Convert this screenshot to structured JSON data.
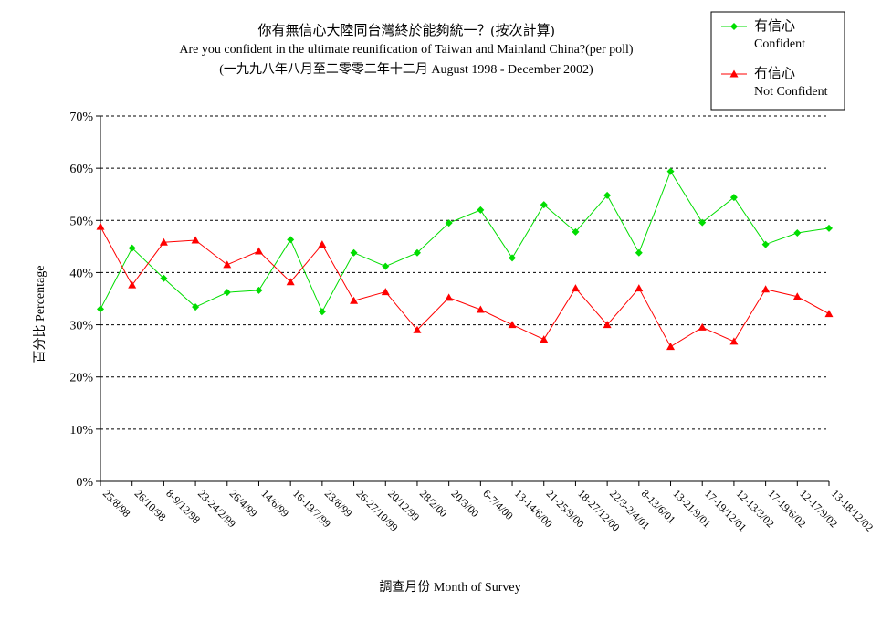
{
  "chart_data": {
    "type": "line",
    "title": "你有無信心大陸同台灣終於能夠統一？(按次計算)",
    "subtitle": "Are you confident in the ultimate reunification of Taiwan and Mainland China?(per poll)",
    "subtitle2": "(一九九八年八月至二零零二年十二月 August 1998 - December 2002)",
    "xlabel": "調查月份 Month of Survey",
    "ylabel": "百分比 Percentage",
    "ylim": [
      0,
      70
    ],
    "yticks": [
      "0%",
      "10%",
      "20%",
      "30%",
      "40%",
      "50%",
      "60%",
      "70%"
    ],
    "grid": true,
    "legend_position": "top-right",
    "categories": [
      "25/8/98",
      "26/10/98",
      "8-9/12/98",
      "23-24/2/99",
      "26/4/99",
      "14/6/99",
      "16-19/7/99",
      "23/8/99",
      "26-27/10/99",
      "20/12/99",
      "28/2/00",
      "20/3/00",
      "6-7/4/00",
      "13-14/6/00",
      "21-25/9/00",
      "18-27/12/00",
      "22/3-2/4/01",
      "8-13/6/01",
      "13-21/9/01",
      "17-19/12/01",
      "12-13/3/02",
      "17-19/6/02",
      "12-17/9/02",
      "13-18/12/02"
    ],
    "series": [
      {
        "name": "有信心",
        "name_en": "Confident",
        "color": "#00dd00",
        "marker": "diamond",
        "values": [
          33,
          44.7,
          38.9,
          33.4,
          36.2,
          36.6,
          46.3,
          32.5,
          43.8,
          41.2,
          43.8,
          49.5,
          52,
          42.8,
          53,
          47.8,
          54.8,
          43.8,
          59.4,
          49.6,
          54.4,
          45.4,
          47.6,
          48.5
        ]
      },
      {
        "name": "冇信心",
        "name_en": "Not Confident",
        "color": "#ff0000",
        "marker": "triangle",
        "values": [
          48.8,
          37.6,
          45.8,
          46.2,
          41.5,
          44.1,
          38.2,
          45.4,
          34.6,
          36.3,
          29,
          35.2,
          32.9,
          30,
          27.2,
          37,
          30,
          37,
          25.8,
          29.5,
          26.8,
          36.8,
          35.4,
          32.1
        ]
      }
    ]
  }
}
